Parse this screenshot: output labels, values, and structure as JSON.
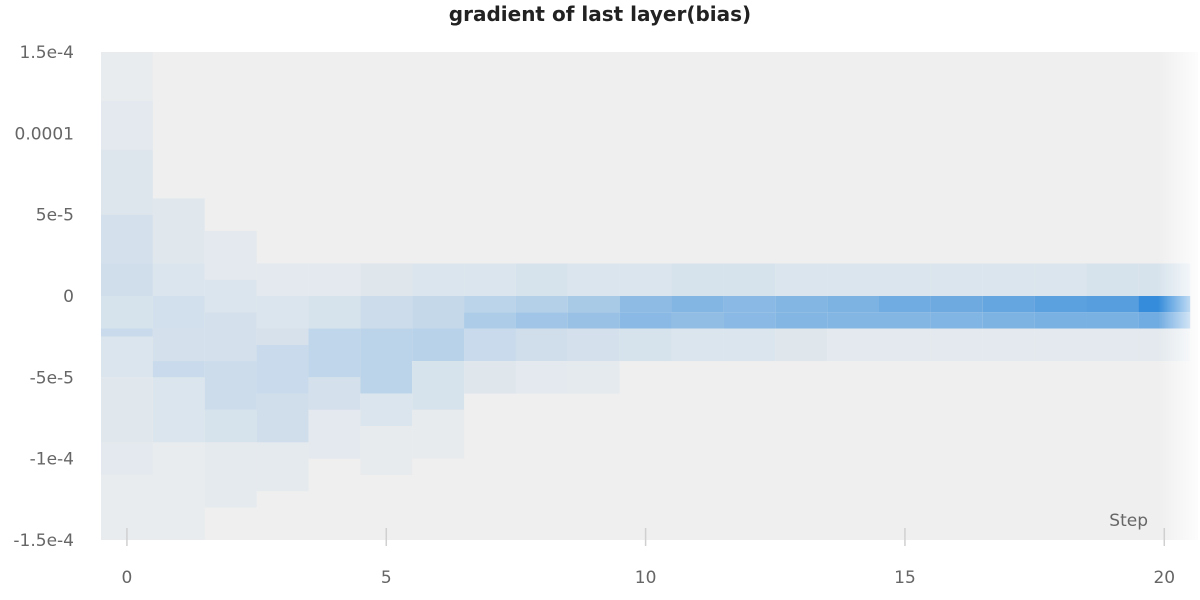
{
  "chart_data": {
    "type": "heatmap",
    "title": "gradient of last layer(bias)",
    "xlabel": "Step",
    "ylabel": "",
    "xlim": [
      -0.5,
      20.65
    ],
    "ylim": [
      -0.00015,
      0.00015
    ],
    "x_ticks": [
      0,
      5,
      10,
      15,
      20
    ],
    "x_tick_labels": [
      "0",
      "5",
      "10",
      "15",
      "20"
    ],
    "y_ticks": [
      0.00015,
      0.0001,
      5e-05,
      0,
      -5e-05,
      -0.0001,
      -0.00015
    ],
    "y_tick_labels": [
      "1.5e-4",
      "0.0001",
      "5e-5",
      "0",
      "-5e-5",
      "-1e-4",
      "-1.5e-4"
    ],
    "colors": {
      "background": "#efefef",
      "low": "#efefef",
      "high": "#2b87d9",
      "grid_tick": "#d0d0d0"
    },
    "bins": [
      {
        "step": 0,
        "cells": [
          {
            "y0": 0.00012,
            "y1": 0.00015,
            "d": 0.03
          },
          {
            "y0": 9e-05,
            "y1": 0.00012,
            "d": 0.06
          },
          {
            "y0": 5e-05,
            "y1": 9e-05,
            "d": 0.09
          },
          {
            "y0": 2e-05,
            "y1": 5e-05,
            "d": 0.14
          },
          {
            "y0": 0.0,
            "y1": 2e-05,
            "d": 0.16
          },
          {
            "y0": -2e-05,
            "y1": 0.0,
            "d": 0.12
          },
          {
            "y0": -2.5e-05,
            "y1": -2e-05,
            "d": 0.2
          },
          {
            "y0": -5e-05,
            "y1": -2.5e-05,
            "d": 0.1
          },
          {
            "y0": -9e-05,
            "y1": -5e-05,
            "d": 0.07
          },
          {
            "y0": -0.00011,
            "y1": -9e-05,
            "d": 0.06
          },
          {
            "y0": -0.00015,
            "y1": -0.00011,
            "d": 0.03
          }
        ]
      },
      {
        "step": 1,
        "cells": [
          {
            "y0": 2e-05,
            "y1": 6e-05,
            "d": 0.07
          },
          {
            "y0": 0.0,
            "y1": 2e-05,
            "d": 0.1
          },
          {
            "y0": -2e-05,
            "y1": 0.0,
            "d": 0.15
          },
          {
            "y0": -4e-05,
            "y1": -2e-05,
            "d": 0.14
          },
          {
            "y0": -5e-05,
            "y1": -4e-05,
            "d": 0.2
          },
          {
            "y0": -9e-05,
            "y1": -5e-05,
            "d": 0.1
          },
          {
            "y0": -0.00015,
            "y1": -9e-05,
            "d": 0.03
          }
        ]
      },
      {
        "step": 2,
        "cells": [
          {
            "y0": 1e-05,
            "y1": 4e-05,
            "d": 0.06
          },
          {
            "y0": -1e-05,
            "y1": 1e-05,
            "d": 0.1
          },
          {
            "y0": -4e-05,
            "y1": -1e-05,
            "d": 0.14
          },
          {
            "y0": -7e-05,
            "y1": -4e-05,
            "d": 0.18
          },
          {
            "y0": -9e-05,
            "y1": -7e-05,
            "d": 0.12
          },
          {
            "y0": -0.00013,
            "y1": -9e-05,
            "d": 0.05
          }
        ]
      },
      {
        "step": 3,
        "cells": [
          {
            "y0": 0.0,
            "y1": 2e-05,
            "d": 0.06
          },
          {
            "y0": -2e-05,
            "y1": 0.0,
            "d": 0.1
          },
          {
            "y0": -3e-05,
            "y1": -2e-05,
            "d": 0.13
          },
          {
            "y0": -6e-05,
            "y1": -3e-05,
            "d": 0.2
          },
          {
            "y0": -9e-05,
            "y1": -6e-05,
            "d": 0.16
          },
          {
            "y0": -0.00012,
            "y1": -9e-05,
            "d": 0.05
          }
        ]
      },
      {
        "step": 4,
        "cells": [
          {
            "y0": 0.0,
            "y1": 2e-05,
            "d": 0.06
          },
          {
            "y0": -2e-05,
            "y1": 0.0,
            "d": 0.12
          },
          {
            "y0": -5e-05,
            "y1": -2e-05,
            "d": 0.24
          },
          {
            "y0": -7e-05,
            "y1": -5e-05,
            "d": 0.14
          },
          {
            "y0": -0.0001,
            "y1": -7e-05,
            "d": 0.06
          }
        ]
      },
      {
        "step": 5,
        "cells": [
          {
            "y0": 0.0,
            "y1": 2e-05,
            "d": 0.08
          },
          {
            "y0": -2e-05,
            "y1": 0.0,
            "d": 0.18
          },
          {
            "y0": -6e-05,
            "y1": -2e-05,
            "d": 0.26
          },
          {
            "y0": -8e-05,
            "y1": -6e-05,
            "d": 0.1
          },
          {
            "y0": -0.00011,
            "y1": -8e-05,
            "d": 0.04
          }
        ]
      },
      {
        "step": 6,
        "cells": [
          {
            "y0": 0.0,
            "y1": 2e-05,
            "d": 0.1
          },
          {
            "y0": -2e-05,
            "y1": 0.0,
            "d": 0.22
          },
          {
            "y0": -4e-05,
            "y1": -2e-05,
            "d": 0.28
          },
          {
            "y0": -7e-05,
            "y1": -4e-05,
            "d": 0.12
          },
          {
            "y0": -0.0001,
            "y1": -7e-05,
            "d": 0.04
          }
        ]
      },
      {
        "step": 7,
        "cells": [
          {
            "y0": 0.0,
            "y1": 2e-05,
            "d": 0.1
          },
          {
            "y0": -1e-05,
            "y1": 0.0,
            "d": 0.26
          },
          {
            "y0": -2e-05,
            "y1": -1e-05,
            "d": 0.34
          },
          {
            "y0": -4e-05,
            "y1": -2e-05,
            "d": 0.2
          },
          {
            "y0": -6e-05,
            "y1": -4e-05,
            "d": 0.08
          }
        ]
      },
      {
        "step": 8,
        "cells": [
          {
            "y0": 0.0,
            "y1": 2e-05,
            "d": 0.12
          },
          {
            "y0": -1e-05,
            "y1": 0.0,
            "d": 0.3
          },
          {
            "y0": -2e-05,
            "y1": -1e-05,
            "d": 0.4
          },
          {
            "y0": -4e-05,
            "y1": -2e-05,
            "d": 0.16
          },
          {
            "y0": -6e-05,
            "y1": -4e-05,
            "d": 0.06
          }
        ]
      },
      {
        "step": 9,
        "cells": [
          {
            "y0": 0.0,
            "y1": 2e-05,
            "d": 0.1
          },
          {
            "y0": -1e-05,
            "y1": 0.0,
            "d": 0.36
          },
          {
            "y0": -2e-05,
            "y1": -1e-05,
            "d": 0.44
          },
          {
            "y0": -4e-05,
            "y1": -2e-05,
            "d": 0.14
          },
          {
            "y0": -6e-05,
            "y1": -4e-05,
            "d": 0.05
          }
        ]
      },
      {
        "step": 10,
        "cells": [
          {
            "y0": 0.0,
            "y1": 2e-05,
            "d": 0.1
          },
          {
            "y0": -1e-05,
            "y1": 0.0,
            "d": 0.5
          },
          {
            "y0": -2e-05,
            "y1": -1e-05,
            "d": 0.52
          },
          {
            "y0": -4e-05,
            "y1": -2e-05,
            "d": 0.12
          }
        ]
      },
      {
        "step": 11,
        "cells": [
          {
            "y0": 0.0,
            "y1": 2e-05,
            "d": 0.12
          },
          {
            "y0": -1e-05,
            "y1": 0.0,
            "d": 0.55
          },
          {
            "y0": -2e-05,
            "y1": -1e-05,
            "d": 0.48
          },
          {
            "y0": -4e-05,
            "y1": -2e-05,
            "d": 0.1
          }
        ]
      },
      {
        "step": 12,
        "cells": [
          {
            "y0": 0.0,
            "y1": 2e-05,
            "d": 0.12
          },
          {
            "y0": -1e-05,
            "y1": 0.0,
            "d": 0.52
          },
          {
            "y0": -2e-05,
            "y1": -1e-05,
            "d": 0.52
          },
          {
            "y0": -4e-05,
            "y1": -2e-05,
            "d": 0.1
          }
        ]
      },
      {
        "step": 13,
        "cells": [
          {
            "y0": 0.0,
            "y1": 2e-05,
            "d": 0.1
          },
          {
            "y0": -1e-05,
            "y1": 0.0,
            "d": 0.55
          },
          {
            "y0": -2e-05,
            "y1": -1e-05,
            "d": 0.55
          },
          {
            "y0": -4e-05,
            "y1": -2e-05,
            "d": 0.08
          }
        ]
      },
      {
        "step": 14,
        "cells": [
          {
            "y0": 0.0,
            "y1": 2e-05,
            "d": 0.1
          },
          {
            "y0": -1e-05,
            "y1": 0.0,
            "d": 0.58
          },
          {
            "y0": -2e-05,
            "y1": -1e-05,
            "d": 0.55
          },
          {
            "y0": -4e-05,
            "y1": -2e-05,
            "d": 0.06
          }
        ]
      },
      {
        "step": 15,
        "cells": [
          {
            "y0": 0.0,
            "y1": 2e-05,
            "d": 0.1
          },
          {
            "y0": -1e-05,
            "y1": 0.0,
            "d": 0.65
          },
          {
            "y0": -2e-05,
            "y1": -1e-05,
            "d": 0.55
          },
          {
            "y0": -4e-05,
            "y1": -2e-05,
            "d": 0.06
          }
        ]
      },
      {
        "step": 16,
        "cells": [
          {
            "y0": 0.0,
            "y1": 2e-05,
            "d": 0.1
          },
          {
            "y0": -1e-05,
            "y1": 0.0,
            "d": 0.66
          },
          {
            "y0": -2e-05,
            "y1": -1e-05,
            "d": 0.56
          },
          {
            "y0": -4e-05,
            "y1": -2e-05,
            "d": 0.06
          }
        ]
      },
      {
        "step": 17,
        "cells": [
          {
            "y0": 0.0,
            "y1": 2e-05,
            "d": 0.1
          },
          {
            "y0": -1e-05,
            "y1": 0.0,
            "d": 0.7
          },
          {
            "y0": -2e-05,
            "y1": -1e-05,
            "d": 0.58
          },
          {
            "y0": -4e-05,
            "y1": -2e-05,
            "d": 0.06
          }
        ]
      },
      {
        "step": 18,
        "cells": [
          {
            "y0": 0.0,
            "y1": 2e-05,
            "d": 0.1
          },
          {
            "y0": -1e-05,
            "y1": 0.0,
            "d": 0.75
          },
          {
            "y0": -2e-05,
            "y1": -1e-05,
            "d": 0.6
          },
          {
            "y0": -4e-05,
            "y1": -2e-05,
            "d": 0.06
          }
        ]
      },
      {
        "step": 19,
        "cells": [
          {
            "y0": 0.0,
            "y1": 2e-05,
            "d": 0.12
          },
          {
            "y0": -1e-05,
            "y1": 0.0,
            "d": 0.78
          },
          {
            "y0": -2e-05,
            "y1": -1e-05,
            "d": 0.6
          },
          {
            "y0": -4e-05,
            "y1": -2e-05,
            "d": 0.06
          }
        ]
      },
      {
        "step": 20,
        "cells": [
          {
            "y0": 0.0,
            "y1": 2e-05,
            "d": 0.12
          },
          {
            "y0": -1e-05,
            "y1": 0.0,
            "d": 0.95
          },
          {
            "y0": -2e-05,
            "y1": -1e-05,
            "d": 0.65
          },
          {
            "y0": -4e-05,
            "y1": -2e-05,
            "d": 0.06
          }
        ]
      }
    ]
  }
}
